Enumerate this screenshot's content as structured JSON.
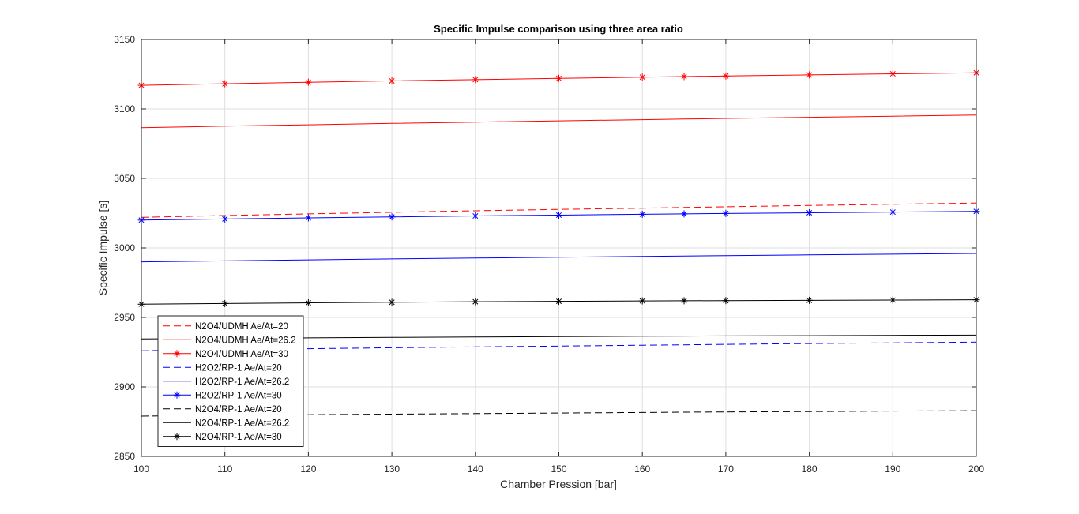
{
  "chart_data": {
    "type": "line",
    "title": "Specific Impulse comparison using three area ratio",
    "xlabel": "Chamber Pression [bar]",
    "ylabel": "Specific Impulse [s]",
    "xlim": [
      100,
      200
    ],
    "ylim": [
      2850,
      3150
    ],
    "xticks": [
      100,
      110,
      120,
      130,
      140,
      150,
      160,
      170,
      180,
      190,
      200
    ],
    "yticks": [
      2850,
      2900,
      2950,
      3000,
      3050,
      3100,
      3150
    ],
    "grid": true,
    "legend_position": "bottom-left",
    "x": [
      100,
      110,
      120,
      130,
      140,
      150,
      160,
      165,
      170,
      180,
      190,
      200
    ],
    "series": [
      {
        "name": "N2O4/UDMH Ae/At=20",
        "color": "#ff0000",
        "style": "dashed",
        "marker": "none",
        "values": [
          3022,
          3023.3,
          3024.5,
          3025.6,
          3026.7,
          3027.7,
          3028.6,
          3029.1,
          3029.6,
          3030.5,
          3031.4,
          3032.3
        ]
      },
      {
        "name": "N2O4/UDMH Ae/At=26.2",
        "color": "#ff0000",
        "style": "solid",
        "marker": "none",
        "values": [
          3086.5,
          3087.6,
          3088.6,
          3089.6,
          3090.5,
          3091.4,
          3092.3,
          3092.7,
          3093.2,
          3094.0,
          3094.8,
          3095.6
        ]
      },
      {
        "name": "N2O4/UDMH Ae/At=30",
        "color": "#ff0000",
        "style": "solid",
        "marker": "star",
        "values": [
          3117,
          3118.1,
          3119.2,
          3120.2,
          3121.1,
          3122.0,
          3122.9,
          3123.3,
          3123.7,
          3124.5,
          3125.3,
          3126.0
        ]
      },
      {
        "name": "H2O2/RP-1 Ae/At=20",
        "color": "#0000ff",
        "style": "dashed",
        "marker": "none",
        "values": [
          2926,
          2926.8,
          2927.5,
          2928.2,
          2928.8,
          2929.4,
          2930.0,
          2930.3,
          2930.6,
          2931.2,
          2931.7,
          2932.2
        ]
      },
      {
        "name": "H2O2/RP-1 Ae/At=26.2",
        "color": "#0000ff",
        "style": "solid",
        "marker": "none",
        "values": [
          2990,
          2990.7,
          2991.4,
          2992.1,
          2992.7,
          2993.3,
          2993.9,
          2994.2,
          2994.5,
          2995.0,
          2995.5,
          2996.0
        ]
      },
      {
        "name": "H2O2/RP-1 Ae/At=30",
        "color": "#0000ff",
        "style": "solid",
        "marker": "star",
        "values": [
          3020,
          3020.8,
          3021.6,
          3022.3,
          3023.0,
          3023.6,
          3024.2,
          3024.5,
          3024.8,
          3025.3,
          3025.8,
          3026.3
        ]
      },
      {
        "name": "N2O4/RP-1 Ae/At=20",
        "color": "#000000",
        "style": "dashed",
        "marker": "none",
        "values": [
          2879,
          2879.5,
          2880.0,
          2880.4,
          2880.8,
          2881.2,
          2881.6,
          2881.8,
          2882.0,
          2882.3,
          2882.6,
          2882.9
        ]
      },
      {
        "name": "N2O4/RP-1 Ae/At=26.2",
        "color": "#000000",
        "style": "solid",
        "marker": "none",
        "values": [
          2934.5,
          2934.9,
          2935.3,
          2935.6,
          2935.9,
          2936.2,
          2936.5,
          2936.6,
          2936.7,
          2936.9,
          2937.1,
          2937.3
        ]
      },
      {
        "name": "N2O4/RP-1 Ae/At=30",
        "color": "#000000",
        "style": "solid",
        "marker": "star",
        "values": [
          2959.5,
          2960.0,
          2960.5,
          2960.9,
          2961.3,
          2961.6,
          2961.9,
          2962.0,
          2962.1,
          2962.3,
          2962.5,
          2962.7
        ]
      }
    ]
  }
}
